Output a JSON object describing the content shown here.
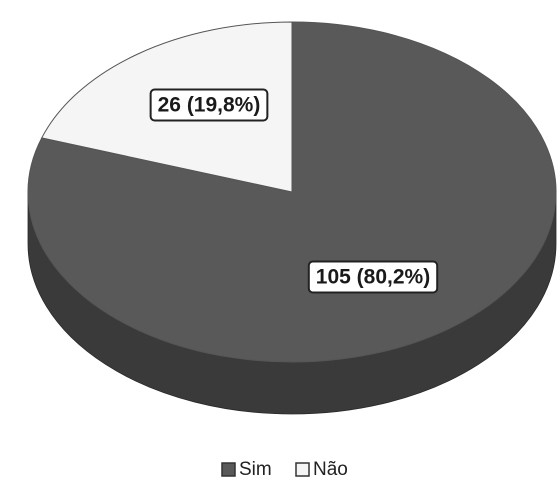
{
  "chart_data": {
    "type": "pie",
    "style": "3d",
    "title": "",
    "slices": [
      {
        "name": "Sim",
        "value": 105,
        "percent": 80.2,
        "label": "105 (80,2%)",
        "color": "#595959",
        "side_color": "#3a3a3a"
      },
      {
        "name": "Não",
        "value": 26,
        "percent": 19.8,
        "label": "26 (19,8%)",
        "color": "#f5f5f5",
        "side_color": "#d9d9d9"
      }
    ],
    "legend": {
      "position": "bottom",
      "entries": [
        "Sim",
        "Não"
      ]
    }
  }
}
